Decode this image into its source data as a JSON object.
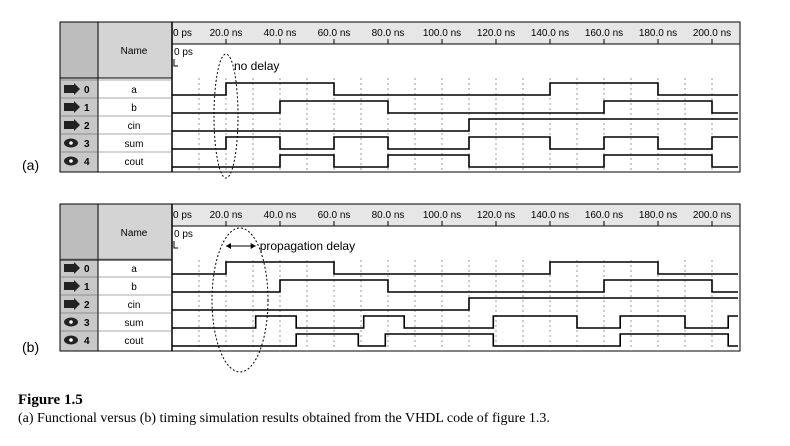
{
  "figure": {
    "title": "Figure 1.5",
    "text": "(a) Functional versus (b) timing simulation results obtained from the VHDL code of figure 1.3."
  },
  "column_header": "Name",
  "ticks": [
    "0 ps",
    "20.0 ns",
    "40.0 ns",
    "60.0 ns",
    "80.0 ns",
    "100.0 ns",
    "120.0 ns",
    "140.0 ns",
    "160.0 ns",
    "180.0 ns",
    "200.0 ns"
  ],
  "cursor_label": "0 ps",
  "panels": [
    {
      "label": "(a)",
      "annotation": "no delay",
      "signals": [
        {
          "index": "0",
          "name": "a",
          "kind": "input",
          "initial": 0,
          "transitions": [
            20,
            60,
            140,
            180
          ]
        },
        {
          "index": "1",
          "name": "b",
          "kind": "input",
          "initial": 0,
          "transitions": [
            40,
            80,
            160,
            200
          ]
        },
        {
          "index": "2",
          "name": "cin",
          "kind": "input",
          "initial": 0,
          "transitions": [
            110
          ]
        },
        {
          "index": "3",
          "name": "sum",
          "kind": "output",
          "initial": 0,
          "transitions": [
            20,
            40,
            60,
            80,
            110,
            140,
            160,
            180,
            200
          ]
        },
        {
          "index": "4",
          "name": "cout",
          "kind": "output",
          "initial": 0,
          "transitions": [
            40,
            60,
            80,
            110,
            160,
            200
          ]
        }
      ]
    },
    {
      "label": "(b)",
      "annotation": "propagation delay",
      "signals": [
        {
          "index": "0",
          "name": "a",
          "kind": "input",
          "initial": 0,
          "transitions": [
            20,
            60,
            140,
            180
          ]
        },
        {
          "index": "1",
          "name": "b",
          "kind": "input",
          "initial": 0,
          "transitions": [
            40,
            80,
            160,
            200
          ]
        },
        {
          "index": "2",
          "name": "cin",
          "kind": "input",
          "initial": 0,
          "transitions": [
            110
          ]
        },
        {
          "index": "3",
          "name": "sum",
          "kind": "output",
          "initial": 0,
          "transitions": [
            31,
            46,
            71,
            86,
            119,
            150,
            166,
            190,
            206
          ]
        },
        {
          "index": "4",
          "name": "cout",
          "kind": "output",
          "initial": 0,
          "transitions": [
            46,
            69,
            79,
            119,
            166,
            206
          ]
        }
      ]
    }
  ]
}
